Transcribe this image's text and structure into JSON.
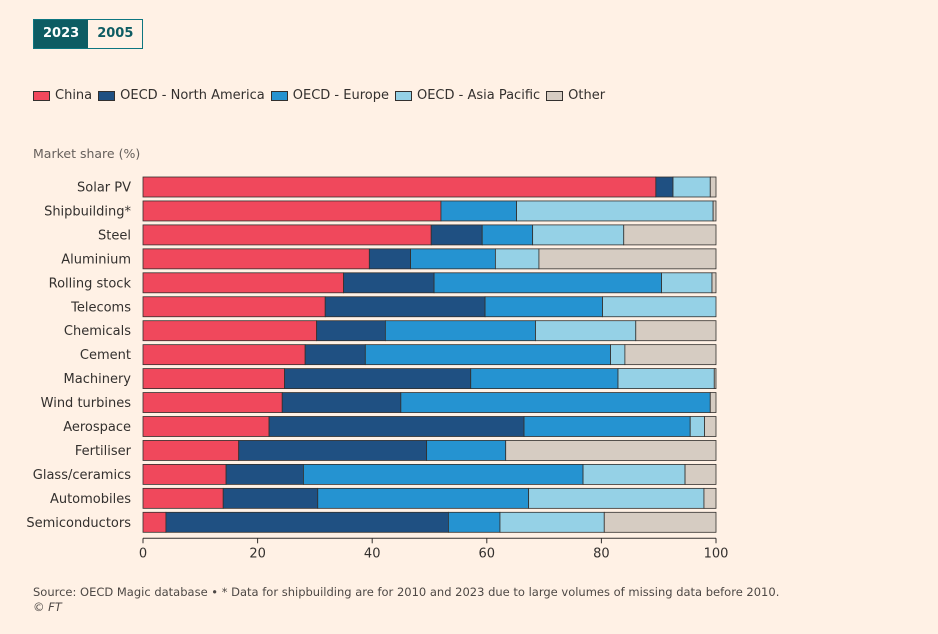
{
  "toggle": {
    "options": [
      "2023",
      "2005"
    ],
    "selected": "2023"
  },
  "colors": {
    "China": "#F0485C",
    "OECD - North America": "#1F5082",
    "OECD - Europe": "#2593D1",
    "OECD - Asia Pacific": "#95D1E6",
    "Other": "#D6CCC2"
  },
  "chart_data": {
    "type": "bar",
    "orientation": "horizontal",
    "stacked": true,
    "xlabel": "Market share (%)",
    "xlim": [
      0,
      100
    ],
    "xticks": [
      0,
      20,
      40,
      60,
      80,
      100
    ],
    "legend_position": "top-left",
    "categories": [
      "Solar PV",
      "Shipbuilding*",
      "Steel",
      "Aluminium",
      "Rolling stock",
      "Telecoms",
      "Chemicals",
      "Cement",
      "Machinery",
      "Wind turbines",
      "Aerospace",
      "Fertiliser",
      "Glass/ceramics",
      "Automobiles",
      "Semiconductors"
    ],
    "series": [
      {
        "name": "China",
        "values": [
          89.5,
          52,
          50.3,
          39.5,
          35,
          31.8,
          30.3,
          28.3,
          24.7,
          24.3,
          22,
          16.7,
          14.5,
          14,
          4
        ]
      },
      {
        "name": "OECD - North America",
        "values": [
          3,
          0,
          8.9,
          7.2,
          15.8,
          27.9,
          12,
          10.5,
          32.5,
          20.7,
          44.5,
          32.8,
          13.5,
          16.5,
          49.3
        ]
      },
      {
        "name": "OECD - Europe",
        "values": [
          0,
          13.2,
          8.8,
          14.8,
          39.7,
          20.5,
          26.2,
          42.8,
          25.7,
          54,
          29,
          13.8,
          48.8,
          36.8,
          9
        ]
      },
      {
        "name": "OECD - Asia Pacific",
        "values": [
          6.5,
          34.3,
          15.9,
          7.6,
          8.8,
          19.8,
          17.5,
          2.5,
          16.8,
          0,
          2.5,
          0,
          17.8,
          30.6,
          18.2
        ]
      },
      {
        "name": "Other",
        "values": [
          1,
          0.5,
          16.1,
          30.9,
          0.7,
          0,
          14,
          15.9,
          0.3,
          1,
          2,
          36.7,
          5.4,
          2.1,
          19.5
        ]
      }
    ]
  },
  "footer": {
    "source": "Source: OECD Magic database • * Data for shipbuilding are for 2010 and 2023 due to large volumes of missing data before 2010.",
    "credit": "© FT"
  }
}
